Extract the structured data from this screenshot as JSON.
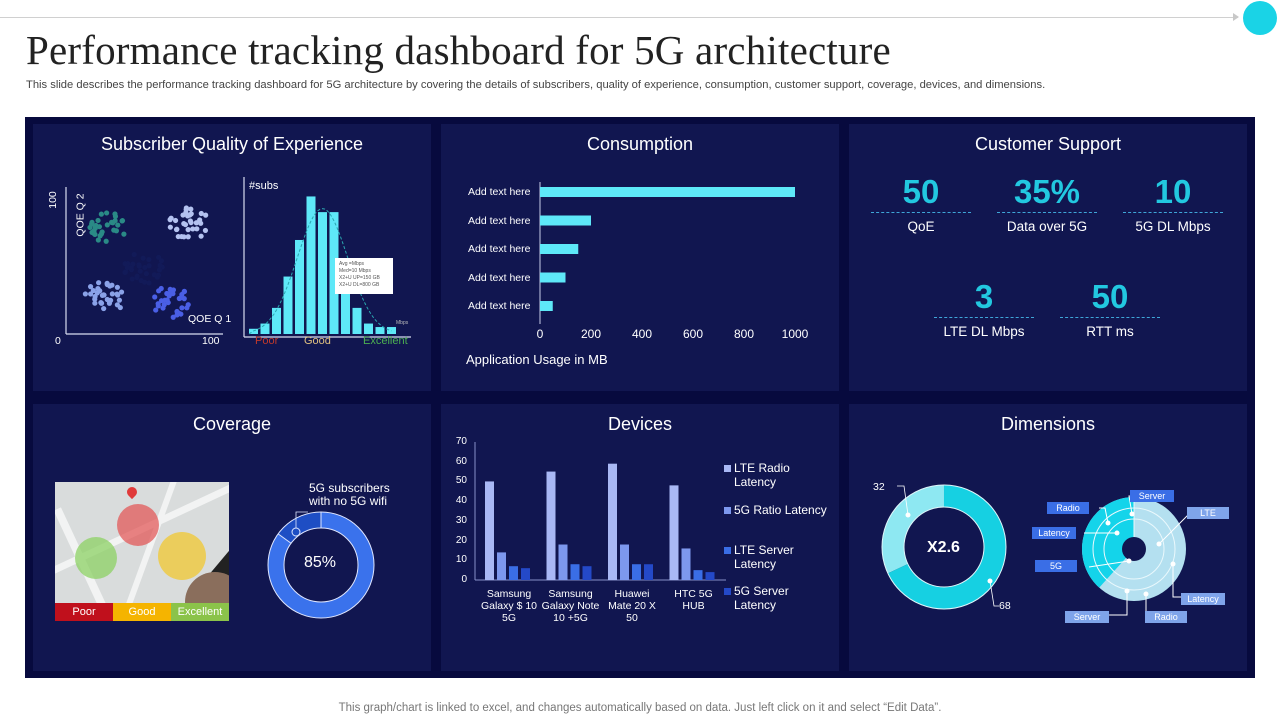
{
  "header": {
    "title": "Performance tracking dashboard for 5G architecture",
    "subtitle": "This slide describes the performance tracking dashboard for 5G architecture by covering the details of subscribers, quality of experience, consumption, customer support, coverage, devices, and dimensions."
  },
  "footer": "This graph/chart is linked to excel, and changes automatically based on data. Just left click on it and select “Edit Data”.",
  "colors": {
    "accent": "#1ad3e6",
    "panel": "#111650",
    "background": "#070a3e",
    "kpi": "#22c8e0"
  },
  "sqoe": {
    "title": "Subscriber Quality of Experience",
    "scatter": {
      "y_max": "100",
      "x_min": "0",
      "x_max": "100",
      "y_label": "QOE Q 2",
      "x_label": "QOE Q 1"
    },
    "histogram": {
      "title": "#subs",
      "unit": "Mbps",
      "tooltip": [
        "Avg =Mbps",
        "Med=10 Mbps",
        "X2+U UP=150 GB",
        "X2+U DL=800 GB"
      ],
      "scale": {
        "poor": "Poor",
        "good": "Good",
        "excellent": "Excellent"
      }
    }
  },
  "consumption": {
    "title": "Consumption",
    "xlabel": "Application Usage in MB"
  },
  "customer_support": {
    "title": "Customer Support",
    "kpis": [
      {
        "value": "50",
        "label": "QoE"
      },
      {
        "value": "35%",
        "label": "Data over 5G"
      },
      {
        "value": "10",
        "label": "5G DL Mbps"
      },
      {
        "value": "3",
        "label": "LTE DL Mbps"
      },
      {
        "value": "50",
        "label": "RTT  ms"
      }
    ]
  },
  "coverage": {
    "title": "Coverage",
    "legend": [
      "Poor",
      "Good",
      "Excellent"
    ],
    "donut_label": "5G subscribers with no 5G wifi",
    "donut_label_lines": [
      "5G subscribers",
      "with no 5G wifi"
    ],
    "donut_value": "85%",
    "donut_percent": 85
  },
  "devices": {
    "title": "Devices"
  },
  "dimensions": {
    "title": "Dimensions",
    "donut_center": "X2.6",
    "donut_values": [
      32,
      68
    ],
    "donut_labels": [
      "32",
      "68"
    ],
    "radial_labels": [
      "Server",
      "Radio",
      "Latency",
      "5G",
      "Server",
      "Radio",
      "Latency",
      "LTE"
    ]
  },
  "chart_data": [
    {
      "type": "scatter",
      "title": "Subscriber Quality of Experience",
      "xlabel": "QOE Q 1",
      "ylabel": "QOE Q 2",
      "xlim": [
        0,
        100
      ],
      "ylim": [
        0,
        100
      ],
      "series": [
        {
          "name": "cluster-teal",
          "center": [
            25,
            72
          ],
          "color": "#2a8a86"
        },
        {
          "name": "cluster-lavender",
          "center": [
            78,
            75
          ],
          "color": "#b4c2f0"
        },
        {
          "name": "cluster-dark",
          "center": [
            50,
            45
          ],
          "color": "#121a58"
        },
        {
          "name": "cluster-periwinkle",
          "center": [
            25,
            25
          ],
          "color": "#8aa2e8"
        },
        {
          "name": "cluster-blue",
          "center": [
            68,
            22
          ],
          "color": "#4a5fe6"
        }
      ]
    },
    {
      "type": "bar",
      "title": "#subs",
      "xlabel": "Mbps",
      "values": [
        3,
        6,
        15,
        33,
        54,
        79,
        70,
        70,
        40,
        15,
        6,
        4,
        4
      ],
      "ylim": [
        0,
        85
      ]
    },
    {
      "type": "bar",
      "orientation": "horizontal",
      "title": "Consumption",
      "xlabel": "Application Usage in MB",
      "categories": [
        "Add text here",
        "Add text here",
        "Add text here",
        "Add text here",
        "Add text here"
      ],
      "values": [
        1000,
        200,
        150,
        100,
        50
      ],
      "xlim": [
        0,
        1000
      ],
      "xticks": [
        "0",
        "200",
        "400",
        "600",
        "800",
        "1000"
      ]
    },
    {
      "type": "bar",
      "title": "Devices",
      "categories": [
        [
          "Samsung",
          "Galaxy $ 10",
          "5G"
        ],
        [
          "Samsung",
          "Galaxy Note",
          "10 +5G"
        ],
        [
          "Huawei",
          "Mate 20 X",
          "50"
        ],
        [
          "HTC 5G",
          "HUB"
        ]
      ],
      "ylim": [
        0,
        70
      ],
      "yticks": [
        "0",
        "10",
        "20",
        "30",
        "40",
        "50",
        "60",
        "70"
      ],
      "series": [
        {
          "name": "LTE Radio Latency",
          "label_lines": [
            "LTE Radio",
            "Latency"
          ],
          "color": "#a9b8f5",
          "values": [
            50,
            55,
            59,
            48
          ]
        },
        {
          "name": "5G Ratio Latency",
          "label_lines": [
            "5G Ratio Latency"
          ],
          "color": "#7d98ee",
          "values": [
            14,
            18,
            18,
            16
          ]
        },
        {
          "name": "LTE Server Latency",
          "label_lines": [
            "LTE Server",
            "Latency"
          ],
          "color": "#3a6ee6",
          "values": [
            7,
            8,
            8,
            5
          ]
        },
        {
          "name": "5G Server Latency",
          "label_lines": [
            "5G Server",
            "Latency"
          ],
          "color": "#2449c8",
          "values": [
            6,
            7,
            8,
            4
          ]
        }
      ]
    },
    {
      "type": "pie",
      "title": "5G subscribers with no 5G wifi",
      "values": [
        85,
        15
      ],
      "labels": [
        "85%",
        "5G subscribers with no 5G wifi"
      ]
    },
    {
      "type": "pie",
      "title": "Dimensions",
      "values": [
        32,
        68
      ],
      "labels": [
        "32",
        "68"
      ],
      "center": "X2.6"
    }
  ]
}
